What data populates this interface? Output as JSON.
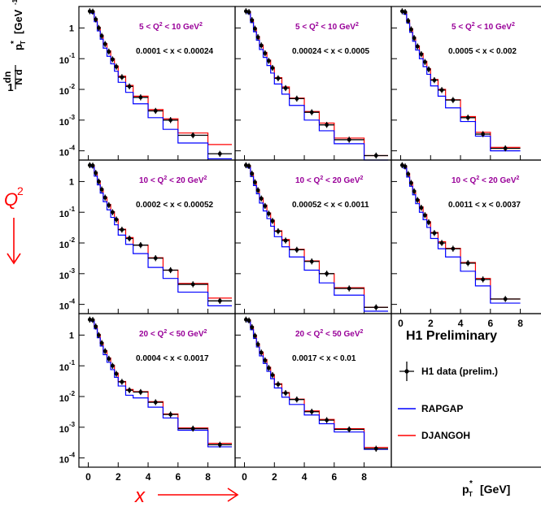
{
  "figure": {
    "y_label_prefix": "1",
    "y_label_frac_top": "dn",
    "y_label_frac_bottom": "N d",
    "y_label_var": "p",
    "y_label_var_sub": "T",
    "y_label_var_sup": "*",
    "y_label_unit": "[GeV",
    "y_label_unit_sup": "-1",
    "y_label_unit_end": "]",
    "x_label_var": "p",
    "x_label_sub": "T",
    "x_label_sup": "*",
    "x_label_unit": "[GeV]",
    "q2_axis_label": "Q",
    "q2_axis_sup": "2",
    "x_axis_big_label": "x",
    "x_ticks": [
      "0",
      "2",
      "4",
      "6",
      "8"
    ],
    "y_ticks": [
      {
        "base": "1",
        "exp": ""
      },
      {
        "base": "10",
        "exp": "-1"
      },
      {
        "base": "10",
        "exp": "-2"
      },
      {
        "base": "10",
        "exp": "-3"
      },
      {
        "base": "10",
        "exp": "-4"
      }
    ],
    "colors": {
      "data": "#000000",
      "rapgap": "#0000ff",
      "djangoh": "#ff0000",
      "q2_text": "#990099",
      "arrow": "#ff0000"
    }
  },
  "legend": {
    "title": "H1 Preliminary",
    "items": [
      {
        "label": "H1 data (prelim.)",
        "style": "data"
      },
      {
        "label": "RAPGAP",
        "style": "rapgap"
      },
      {
        "label": "DJANGOH",
        "style": "djangoh"
      }
    ]
  },
  "chart_data": {
    "type": "line",
    "x_scale": "linear",
    "y_scale": "log",
    "xlim": [
      -0.3,
      9.6
    ],
    "ylim": [
      5e-05,
      5
    ],
    "xlabel": "pT* [GeV]",
    "ylabel": "1/N dn/dpT* [GeV^-1]",
    "x_ticks": [
      0,
      2,
      4,
      6,
      8
    ],
    "grid": false,
    "legend_position": "bottom-right panel",
    "bin_edges": [
      0,
      0.2,
      0.4,
      0.6,
      0.8,
      1.0,
      1.25,
      1.5,
      1.75,
      2.0,
      2.5,
      3.0,
      4.0,
      5.0,
      6.0,
      8.0,
      9.6
    ],
    "bin_centers": [
      0.1,
      0.3,
      0.5,
      0.7,
      0.9,
      1.125,
      1.375,
      1.625,
      1.875,
      2.25,
      2.75,
      3.5,
      4.5,
      5.5,
      7.0,
      8.8
    ],
    "series": [
      {
        "name": "H1 data (prelim.)",
        "style": "data"
      },
      {
        "name": "RAPGAP",
        "style": "rapgap"
      },
      {
        "name": "DJANGOH",
        "style": "djangoh"
      }
    ],
    "panels": [
      {
        "q2_label": "5  < Q",
        "q2_sup": "2",
        "q2_tail": " < 10 GeV",
        "q2_unit_sup": "2",
        "x_label": "0.0001 < x  < 0.00024",
        "data": [
          3.5,
          3.4,
          1.9,
          1.0,
          0.55,
          0.3,
          0.17,
          0.095,
          0.055,
          0.025,
          0.0125,
          0.0055,
          0.002,
          0.001,
          0.00032,
          8e-05
        ],
        "rapgap": [
          3.4,
          3.0,
          1.6,
          0.8,
          0.43,
          0.22,
          0.12,
          0.068,
          0.039,
          0.017,
          0.008,
          0.0034,
          0.0012,
          0.0005,
          0.00018,
          5.5e-05
        ],
        "djangoh": [
          3.6,
          3.5,
          2.0,
          1.05,
          0.58,
          0.31,
          0.18,
          0.1,
          0.058,
          0.027,
          0.0135,
          0.006,
          0.0022,
          0.0011,
          0.00038,
          0.00016
        ]
      },
      {
        "q2_label": "5  < Q",
        "q2_sup": "2",
        "q2_tail": " < 10 GeV",
        "q2_unit_sup": "2",
        "x_label": "0.00024 < x  < 0.0005",
        "data": [
          3.5,
          3.3,
          1.8,
          0.95,
          0.5,
          0.27,
          0.15,
          0.085,
          0.05,
          0.023,
          0.011,
          0.005,
          0.0018,
          0.0007,
          0.00023,
          7e-05
        ],
        "rapgap": [
          3.4,
          2.9,
          1.5,
          0.75,
          0.4,
          0.2,
          0.11,
          0.06,
          0.034,
          0.015,
          0.007,
          0.003,
          0.001,
          0.00045,
          0.00017,
          5e-05
        ],
        "djangoh": [
          3.6,
          3.4,
          1.9,
          1.0,
          0.53,
          0.28,
          0.16,
          0.09,
          0.052,
          0.024,
          0.012,
          0.0052,
          0.0019,
          0.0008,
          0.00026,
          7e-05
        ]
      },
      {
        "q2_label": "5  < Q",
        "q2_sup": "2",
        "q2_tail": " < 10 GeV",
        "q2_unit_sup": "2",
        "x_label": "0.0005 < x  < 0.002",
        "data": [
          3.5,
          3.3,
          1.7,
          0.9,
          0.47,
          0.25,
          0.14,
          0.078,
          0.045,
          0.02,
          0.0095,
          0.0045,
          0.0012,
          0.00035,
          0.00012
        ],
        "rapgap": [
          3.4,
          2.8,
          1.45,
          0.72,
          0.37,
          0.19,
          0.1,
          0.055,
          0.031,
          0.013,
          0.006,
          0.0025,
          0.0009,
          0.0003,
          0.0001
        ],
        "djangoh": [
          3.6,
          3.3,
          1.8,
          0.95,
          0.5,
          0.26,
          0.15,
          0.082,
          0.047,
          0.021,
          0.01,
          0.0046,
          0.0013,
          0.0004,
          0.00013
        ]
      },
      {
        "q2_label": "10 < Q",
        "q2_sup": "2",
        "q2_tail": " < 20 GeV",
        "q2_unit_sup": "2",
        "x_label": "0.0002 < x  < 0.00052",
        "data": [
          3.4,
          3.3,
          1.9,
          1.0,
          0.55,
          0.3,
          0.17,
          0.1,
          0.058,
          0.027,
          0.014,
          0.0085,
          0.0032,
          0.0013,
          0.00045,
          0.00013
        ],
        "rapgap": [
          3.3,
          2.9,
          1.5,
          0.78,
          0.42,
          0.22,
          0.12,
          0.068,
          0.039,
          0.018,
          0.009,
          0.0045,
          0.0016,
          0.0007,
          0.00025,
          9e-05
        ],
        "djangoh": [
          3.5,
          3.4,
          2.0,
          1.05,
          0.58,
          0.31,
          0.18,
          0.105,
          0.06,
          0.028,
          0.015,
          0.0085,
          0.0033,
          0.0013,
          0.00048,
          0.00016
        ]
      },
      {
        "q2_label": "10 < Q",
        "q2_sup": "2",
        "q2_tail": " < 20 GeV",
        "q2_unit_sup": "2",
        "x_label": "0.00052 < x  < 0.0011",
        "data": [
          3.4,
          3.2,
          1.8,
          0.95,
          0.52,
          0.28,
          0.16,
          0.09,
          0.052,
          0.024,
          0.012,
          0.006,
          0.0025,
          0.001,
          0.00033,
          8e-05
        ],
        "rapgap": [
          3.3,
          2.8,
          1.45,
          0.74,
          0.4,
          0.2,
          0.11,
          0.062,
          0.035,
          0.016,
          0.0075,
          0.0035,
          0.0013,
          0.0005,
          0.0002,
          6e-05
        ],
        "djangoh": [
          3.5,
          3.3,
          1.9,
          1.0,
          0.55,
          0.29,
          0.17,
          0.095,
          0.055,
          0.025,
          0.013,
          0.0062,
          0.0026,
          0.001,
          0.00035,
          8e-05
        ]
      },
      {
        "q2_label": "10 < Q",
        "q2_sup": "2",
        "q2_tail": " < 20 GeV",
        "q2_unit_sup": "2",
        "x_label": "0.0011 < x  < 0.0037",
        "data": [
          3.4,
          3.1,
          1.75,
          0.9,
          0.48,
          0.25,
          0.14,
          0.08,
          0.047,
          0.021,
          0.01,
          0.0065,
          0.0022,
          0.00065,
          0.00015
        ],
        "rapgap": [
          3.3,
          2.7,
          1.4,
          0.7,
          0.37,
          0.19,
          0.1,
          0.057,
          0.032,
          0.014,
          0.0065,
          0.0035,
          0.0012,
          0.0004,
          0.00011
        ],
        "djangoh": [
          3.5,
          3.2,
          1.85,
          0.95,
          0.5,
          0.26,
          0.15,
          0.085,
          0.049,
          0.022,
          0.011,
          0.0067,
          0.0023,
          0.0007,
          0.00015
        ]
      },
      {
        "q2_label": "20 < Q",
        "q2_sup": "2",
        "q2_tail": " < 50 GeV",
        "q2_unit_sup": "2",
        "x_label": "0.0004 < x  < 0.0017",
        "data": [
          3.2,
          3.1,
          1.9,
          1.0,
          0.55,
          0.3,
          0.17,
          0.1,
          0.055,
          0.03,
          0.016,
          0.014,
          0.0065,
          0.0026,
          0.0009,
          0.00027
        ],
        "rapgap": [
          3.1,
          2.8,
          1.6,
          0.82,
          0.44,
          0.23,
          0.13,
          0.075,
          0.042,
          0.022,
          0.011,
          0.009,
          0.0045,
          0.002,
          0.0008,
          0.00023
        ],
        "djangoh": [
          3.3,
          3.2,
          2.0,
          1.05,
          0.57,
          0.31,
          0.18,
          0.105,
          0.058,
          0.031,
          0.017,
          0.0145,
          0.0068,
          0.0027,
          0.00095,
          0.0003
        ]
      },
      {
        "q2_label": "20 < Q",
        "q2_sup": "2",
        "q2_tail": " < 50 GeV",
        "q2_unit_sup": "2",
        "x_label": "0.0017 < x  < 0.01",
        "data": [
          3.2,
          3.0,
          1.8,
          0.95,
          0.5,
          0.27,
          0.15,
          0.085,
          0.05,
          0.025,
          0.013,
          0.008,
          0.0032,
          0.0017,
          0.00085,
          0.0002
        ],
        "rapgap": [
          3.1,
          2.7,
          1.5,
          0.78,
          0.41,
          0.21,
          0.12,
          0.066,
          0.038,
          0.019,
          0.0095,
          0.0055,
          0.0025,
          0.0013,
          0.0007,
          0.00019
        ],
        "djangoh": [
          3.3,
          3.1,
          1.9,
          1.0,
          0.52,
          0.28,
          0.16,
          0.09,
          0.052,
          0.026,
          0.0135,
          0.0082,
          0.0034,
          0.0018,
          0.0009,
          0.00022
        ]
      }
    ]
  }
}
